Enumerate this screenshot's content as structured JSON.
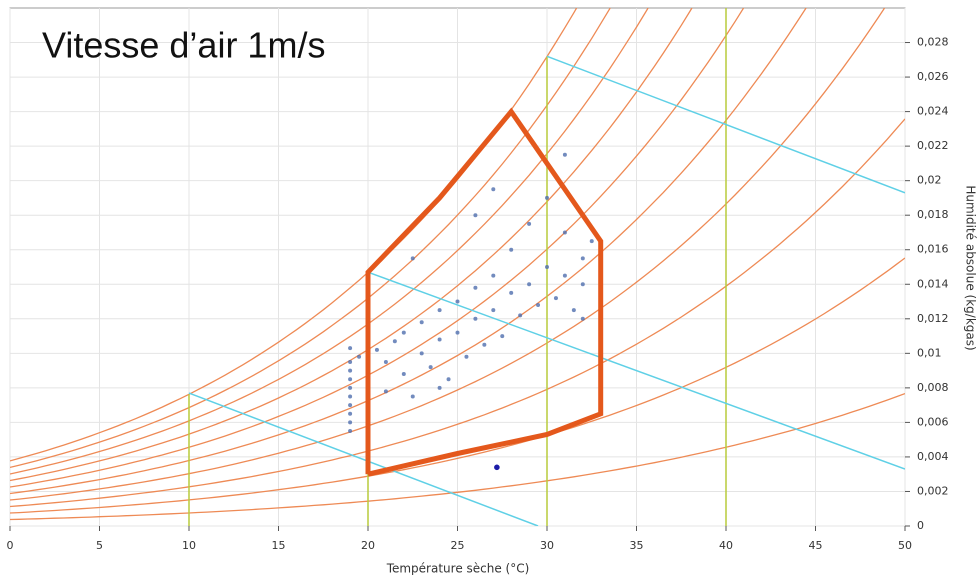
{
  "chart_data": {
    "type": "scatter",
    "annotation": "Vitesse d’air 1m/s",
    "x_label": "Température sèche (°C)",
    "y_label": "Humidité absolue (kg/kgas)",
    "xlim": [
      0,
      50
    ],
    "xticks": [
      0,
      5,
      10,
      15,
      20,
      25,
      30,
      35,
      40,
      45,
      50
    ],
    "ylim": [
      0,
      0.03
    ],
    "yticks": [
      0,
      {
        "value": 0.002,
        "label": "0,002"
      },
      {
        "value": 0.004,
        "label": "0,004"
      },
      {
        "value": 0.006,
        "label": "0,006"
      },
      {
        "value": 0.008,
        "label": "0,008"
      },
      {
        "value": 0.01,
        "label": "0,01"
      },
      {
        "value": 0.012,
        "label": "0,012"
      },
      {
        "value": 0.014,
        "label": "0,014"
      },
      {
        "value": 0.016,
        "label": "0,016"
      },
      {
        "value": 0.018,
        "label": "0,018"
      },
      {
        "value": 0.02,
        "label": "0,02"
      },
      {
        "value": 0.022,
        "label": "0,022"
      },
      {
        "value": 0.024,
        "label": "0,024"
      },
      {
        "value": 0.026,
        "label": "0,026"
      },
      {
        "value": 0.028,
        "label": "0,028"
      }
    ],
    "grid": true,
    "rh_curves": {
      "color": "#ee8a55",
      "values": [
        0.1,
        0.2,
        0.3,
        0.4,
        0.5,
        0.6,
        0.7,
        0.8,
        0.9,
        1.0
      ]
    },
    "isotherms": {
      "color": "#b8cc3c",
      "values": [
        10,
        20,
        30,
        40
      ]
    },
    "enthalpy_lines": {
      "color": "#5fd0e6",
      "lines": [
        {
          "x": [
            10,
            29.5
          ],
          "y": [
            0.0077,
            0
          ]
        },
        {
          "x": [
            20,
            50
          ],
          "y": [
            0.0147,
            0.0033
          ]
        },
        {
          "x": [
            30,
            50
          ],
          "y": [
            0.0272,
            0.0193
          ]
        }
      ]
    },
    "comfort_zone": {
      "color": "#e4581c",
      "x": [
        20,
        20,
        24,
        26,
        28,
        33,
        33,
        30,
        25,
        20
      ],
      "y": [
        0.003,
        0.0147,
        0.019,
        0.0215,
        0.024,
        0.0165,
        0.0065,
        0.0053,
        0.0042,
        0.003
      ]
    },
    "series": [
      {
        "color": "#4f6eae",
        "x": [
          19,
          19,
          19,
          19,
          19,
          19,
          19,
          19,
          19,
          19,
          19.5,
          20,
          20.5,
          21,
          21,
          21.5,
          22,
          22,
          22.5,
          23,
          23,
          23.5,
          24,
          24,
          24.5,
          25,
          25,
          25.5,
          26,
          26,
          26.5,
          27,
          27,
          27.5,
          28,
          28,
          28.5,
          29,
          29,
          29.5,
          30,
          30,
          30.5,
          31,
          31,
          31.5,
          32,
          32,
          32.5,
          32,
          31,
          27,
          26,
          24,
          22.5
        ],
        "y": [
          0.0055,
          0.0065,
          0.0075,
          0.0085,
          0.0095,
          0.0103,
          0.006,
          0.008,
          0.009,
          0.007,
          0.0098,
          0.0085,
          0.0102,
          0.0078,
          0.0095,
          0.0107,
          0.0088,
          0.0112,
          0.0075,
          0.01,
          0.0118,
          0.0092,
          0.0108,
          0.0125,
          0.0085,
          0.0112,
          0.013,
          0.0098,
          0.012,
          0.0138,
          0.0105,
          0.0125,
          0.0145,
          0.011,
          0.0135,
          0.016,
          0.0122,
          0.014,
          0.0175,
          0.0128,
          0.015,
          0.019,
          0.0132,
          0.0145,
          0.017,
          0.0125,
          0.0155,
          0.014,
          0.0165,
          0.012,
          0.0215,
          0.0195,
          0.018,
          0.008,
          0.0155
        ]
      },
      {
        "color": "#1c1ca8",
        "x": [
          27.2
        ],
        "y": [
          0.0034
        ]
      }
    ]
  }
}
